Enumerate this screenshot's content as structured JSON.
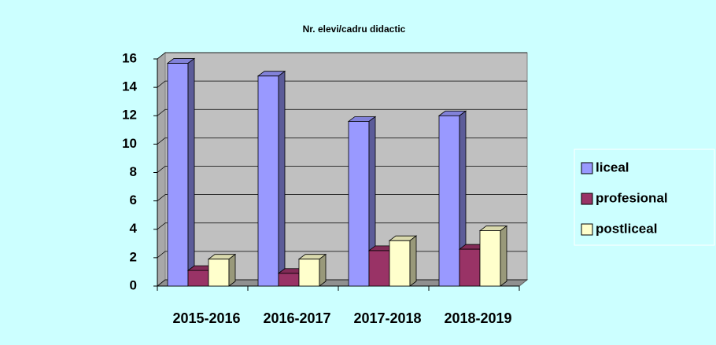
{
  "chart_data": {
    "type": "bar3d",
    "title": "Nr. elevi/cadru didactic",
    "categories": [
      "2015-2016",
      "2016-2017",
      "2017-2018",
      "2018-2019"
    ],
    "series": [
      {
        "name": "liceal",
        "color": "#9999ff",
        "values": [
          15.7,
          14.8,
          11.6,
          12.0
        ]
      },
      {
        "name": "profesional",
        "color": "#993366",
        "values": [
          1.1,
          0.9,
          2.5,
          2.6
        ]
      },
      {
        "name": "postliceal",
        "color": "#ffffcc",
        "values": [
          1.9,
          1.9,
          3.2,
          3.9
        ]
      }
    ],
    "ylim": [
      0,
      16
    ],
    "yticks": [
      0,
      2,
      4,
      6,
      8,
      10,
      12,
      14,
      16
    ],
    "grid": true,
    "legend": "right"
  }
}
